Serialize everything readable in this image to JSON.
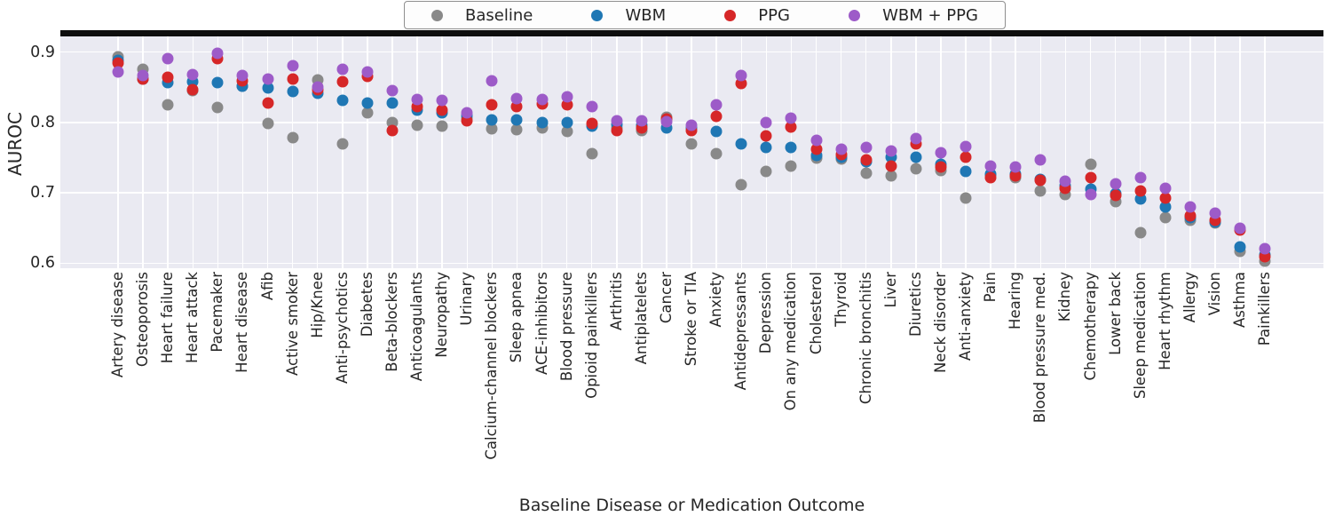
{
  "figure": {
    "background": "#ffffff",
    "plot_bg": "#eaeaf2",
    "grid_color": "#ffffff",
    "top_spine_color": "#0e0e0e",
    "text_color": "#262626"
  },
  "legend": {
    "bg": "#fdfdfd",
    "border_color": "#8f8f8f"
  },
  "chart_data": {
    "type": "scatter",
    "title": "",
    "xlabel": "Baseline Disease or Medication Outcome",
    "ylabel": "AUROC",
    "ylim": [
      0.59,
      0.92
    ],
    "yticks": [
      0.9,
      0.8,
      0.7,
      0.6
    ],
    "grid": true,
    "legend_position": "top center",
    "marker": "circle",
    "categories": [
      "Artery disease",
      "Osteoporosis",
      "Heart failure",
      "Heart attack",
      "Pacemaker",
      "Heart disease",
      "Afib",
      "Active smoker",
      "Hip/Knee",
      "Anti-psychotics",
      "Diabetes",
      "Beta-blockers",
      "Anticoagulants",
      "Neuropathy",
      "Urinary",
      "Calcium-channel blockers",
      "Sleep apnea",
      "ACE-inhibitors",
      "Blood pressure",
      "Opioid painkillers",
      "Arthritis",
      "Antiplatelets",
      "Cancer",
      "Stroke or TIA",
      "Anxiety",
      "Antidepressants",
      "Depression",
      "On any medication",
      "Cholesterol",
      "Thyroid",
      "Chronic bronchitis",
      "Liver",
      "Diuretics",
      "Neck disorder",
      "Anti-anxiety",
      "Pain",
      "Hearing",
      "Blood pressure med.",
      "Kidney",
      "Chemotherapy",
      "Lower back",
      "Sleep medication",
      "Heart rhythm",
      "Allergy",
      "Vision",
      "Asthma",
      "Painkillers"
    ],
    "series": [
      {
        "name": "Baseline",
        "color": "#898989",
        "values": [
          0.893,
          0.875,
          0.825,
          0.845,
          0.821,
          0.851,
          0.799,
          0.778,
          0.86,
          0.77,
          0.813,
          0.8,
          0.796,
          0.795,
          0.806,
          0.791,
          0.79,
          0.792,
          0.787,
          0.755,
          0.792,
          0.789,
          0.807,
          0.769,
          0.756,
          0.711,
          0.73,
          0.738,
          0.749,
          0.748,
          0.728,
          0.724,
          0.734,
          0.732,
          0.693,
          0.725,
          0.721,
          0.703,
          0.697,
          0.741,
          0.688,
          0.643,
          0.665,
          0.661,
          0.657,
          0.617,
          0.603
        ]
      },
      {
        "name": "WBM",
        "color": "#1f77b4",
        "values": [
          0.888,
          0.861,
          0.857,
          0.858,
          0.856,
          0.852,
          0.849,
          0.844,
          0.841,
          0.831,
          0.827,
          0.827,
          0.818,
          0.813,
          0.81,
          0.804,
          0.803,
          0.8,
          0.8,
          0.795,
          0.797,
          0.796,
          0.792,
          0.792,
          0.787,
          0.769,
          0.764,
          0.764,
          0.753,
          0.75,
          0.744,
          0.75,
          0.75,
          0.741,
          0.73,
          0.727,
          0.727,
          0.719,
          0.71,
          0.705,
          0.699,
          0.691,
          0.68,
          0.665,
          0.659,
          0.623,
          0.612
        ]
      },
      {
        "name": "PPG",
        "color": "#d62728",
        "values": [
          0.884,
          0.862,
          0.864,
          0.846,
          0.89,
          0.859,
          0.827,
          0.861,
          0.846,
          0.858,
          0.865,
          0.789,
          0.822,
          0.818,
          0.802,
          0.825,
          0.822,
          0.826,
          0.825,
          0.799,
          0.789,
          0.792,
          0.805,
          0.789,
          0.808,
          0.855,
          0.781,
          0.793,
          0.762,
          0.754,
          0.747,
          0.738,
          0.77,
          0.737,
          0.751,
          0.722,
          0.724,
          0.718,
          0.707,
          0.722,
          0.696,
          0.703,
          0.692,
          0.667,
          0.661,
          0.647,
          0.609
        ]
      },
      {
        "name": "WBM + PPG",
        "color": "#9d5bc8",
        "values": [
          0.872,
          0.866,
          0.89,
          0.868,
          0.898,
          0.866,
          0.862,
          0.881,
          0.85,
          0.875,
          0.872,
          0.845,
          0.833,
          0.831,
          0.814,
          0.859,
          0.834,
          0.833,
          0.836,
          0.822,
          0.802,
          0.802,
          0.801,
          0.796,
          0.825,
          0.866,
          0.8,
          0.806,
          0.774,
          0.762,
          0.764,
          0.76,
          0.777,
          0.757,
          0.766,
          0.738,
          0.737,
          0.747,
          0.717,
          0.698,
          0.713,
          0.722,
          0.706,
          0.68,
          0.671,
          0.65,
          0.621
        ]
      }
    ]
  }
}
